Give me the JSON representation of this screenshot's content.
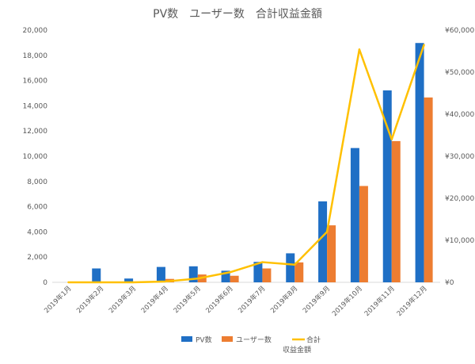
{
  "chart_data": {
    "type": "bar",
    "title": "PV数　ユーザー数　合計収益金額",
    "categories": [
      "2019年1月",
      "2019年2月",
      "2019年3月",
      "2019年4月",
      "2019年5月",
      "2019年6月",
      "2019年7月",
      "2019年8月",
      "2019年9月",
      "2019年10月",
      "2019年11月",
      "2019年12月"
    ],
    "y_left": {
      "ylim": [
        0,
        20000
      ],
      "ticks": [
        "0",
        "2,000",
        "4,000",
        "6,000",
        "8,000",
        "10,000",
        "12,000",
        "14,000",
        "16,000",
        "18,000",
        "20,000"
      ]
    },
    "y_right": {
      "ylim": [
        0,
        60000
      ],
      "ticks": [
        "¥0",
        "¥10,000",
        "¥20,000",
        "¥30,000",
        "¥40,000",
        "¥50,000",
        "¥60,000"
      ]
    },
    "series": [
      {
        "name": "PV数",
        "type": "bar",
        "axis": "left",
        "color": "#1f6fc5",
        "values": [
          0,
          1100,
          300,
          1220,
          1270,
          920,
          1620,
          2300,
          6420,
          10650,
          15220,
          18980
        ]
      },
      {
        "name": "ユーザー数",
        "type": "bar",
        "axis": "left",
        "color": "#ed7d31",
        "values": [
          0,
          40,
          60,
          270,
          620,
          520,
          1100,
          1580,
          4520,
          7640,
          11200,
          14660
        ]
      },
      {
        "name": "合計",
        "type": "line",
        "axis": "right",
        "color": "#ffc000",
        "values": [
          0,
          0,
          0,
          200,
          900,
          2400,
          4800,
          4200,
          12000,
          55400,
          34000,
          56500
        ]
      }
    ],
    "legend": {
      "position": "bottom",
      "extra_label": "収益金額"
    },
    "grid": false
  }
}
